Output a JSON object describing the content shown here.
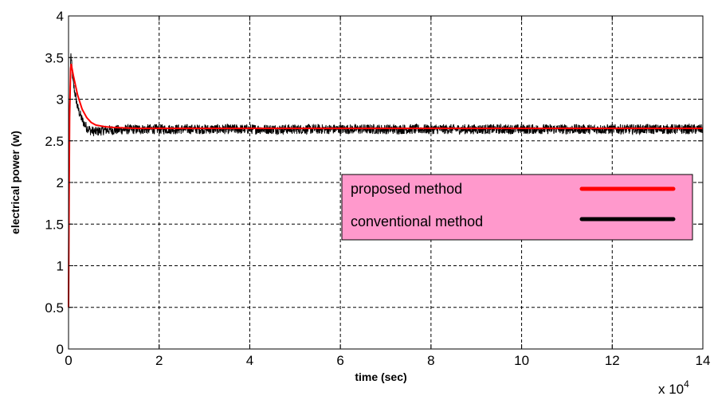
{
  "chart_data": {
    "type": "line",
    "xlabel": "time (sec)",
    "ylabel": "electrical power (w)",
    "x_multiplier_label": "x 10",
    "x_multiplier_exponent": "4",
    "xlim": [
      0,
      14
    ],
    "ylim": [
      0,
      4
    ],
    "x_ticks": [
      0,
      2,
      4,
      6,
      8,
      10,
      12,
      14
    ],
    "y_ticks": [
      0,
      0.5,
      1,
      1.5,
      2,
      2.5,
      3,
      3.5,
      4
    ],
    "grid": true,
    "legend_position": "center-right",
    "series": [
      {
        "name": "proposed method",
        "color": "#ff0000",
        "x": [
          0,
          0.02,
          0.05,
          0.1,
          0.2,
          0.3,
          0.4,
          0.5,
          0.6,
          0.8,
          1.0,
          1.5,
          2,
          4,
          6,
          8,
          10,
          12,
          14
        ],
        "y": [
          0.5,
          2.7,
          3.45,
          3.3,
          3.05,
          2.88,
          2.78,
          2.72,
          2.69,
          2.67,
          2.66,
          2.65,
          2.65,
          2.65,
          2.65,
          2.65,
          2.65,
          2.65,
          2.65
        ]
      },
      {
        "name": "conventional method",
        "color": "#000000",
        "x": [
          0,
          0.02,
          0.05,
          0.1,
          0.2,
          0.3,
          0.4,
          0.5,
          0.6,
          0.8,
          1.0,
          1.5,
          2,
          4,
          6,
          8,
          10,
          12,
          14
        ],
        "y": [
          0.5,
          2.8,
          3.55,
          3.2,
          2.9,
          2.75,
          2.66,
          2.62,
          2.61,
          2.63,
          2.63,
          2.64,
          2.64,
          2.64,
          2.64,
          2.64,
          2.64,
          2.64,
          2.64
        ],
        "noise_amplitude": 0.06
      }
    ],
    "legend": {
      "background": "#ff99cc",
      "items": [
        {
          "label": "proposed method",
          "color": "#ff0000"
        },
        {
          "label": "conventional method",
          "color": "#000000"
        }
      ]
    }
  }
}
